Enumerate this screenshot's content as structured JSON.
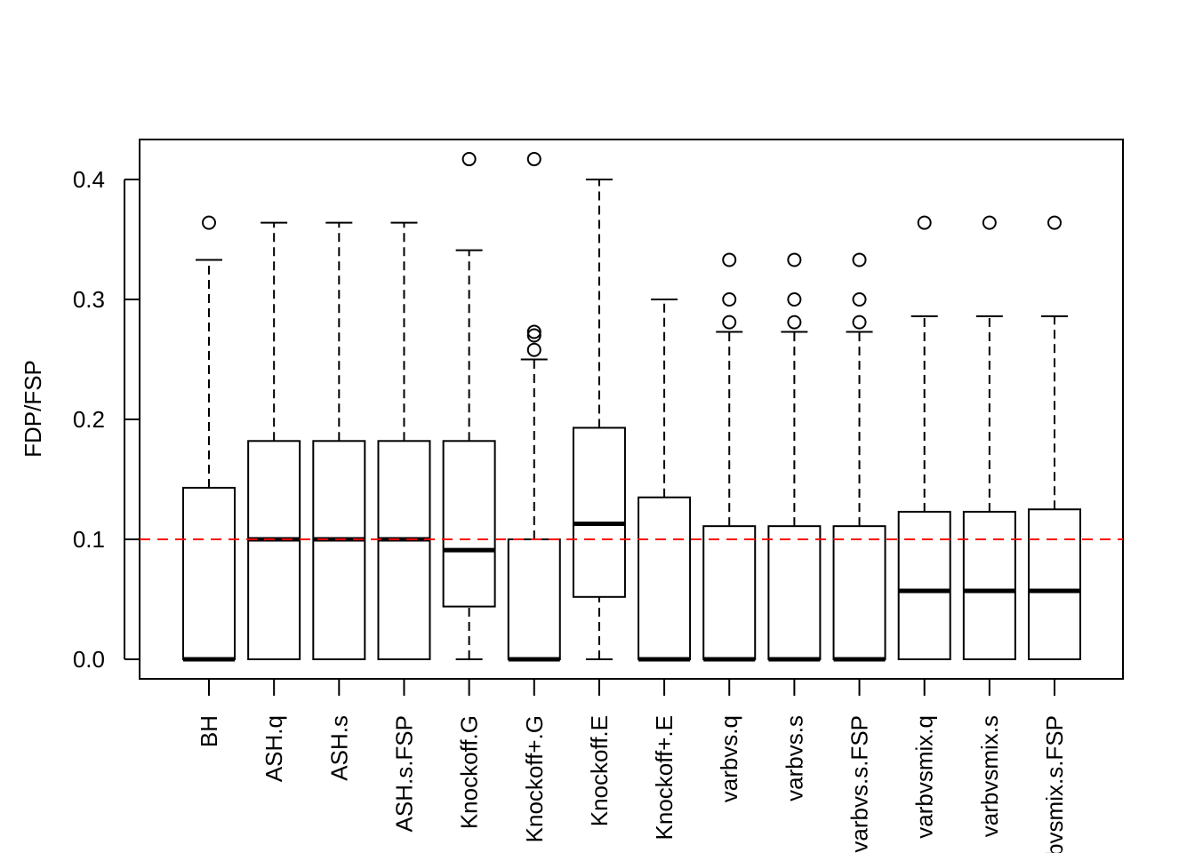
{
  "chart_data": {
    "type": "boxplot",
    "title": "",
    "xlabel": "",
    "ylabel": "FDP/FSP",
    "ylim": [
      -0.017,
      0.433
    ],
    "yticks": [
      0.0,
      0.1,
      0.2,
      0.3,
      0.4
    ],
    "ytick_labels": [
      "0.0",
      "0.1",
      "0.2",
      "0.3",
      "0.4"
    ],
    "grid": false,
    "reference_line": {
      "y": 0.1,
      "color": "#ff0000",
      "style": "dashed"
    },
    "categories": [
      "BH",
      "ASH.q",
      "ASH.s",
      "ASH.s.FSP",
      "Knockoff.G",
      "Knockoff+.G",
      "Knockoff.E",
      "Knockoff+.E",
      "varbvs.q",
      "varbvs.s",
      "varbvs.s.FSP",
      "varbvsmix.q",
      "varbvsmix.s",
      "varbvsmix.s.FSP"
    ],
    "boxes": [
      {
        "name": "BH",
        "whisker_low": 0.0,
        "q1": 0.0,
        "median": 0.0,
        "q3": 0.143,
        "whisker_high": 0.333,
        "outliers": [
          0.364
        ]
      },
      {
        "name": "ASH.q",
        "whisker_low": 0.0,
        "q1": 0.0,
        "median": 0.1,
        "q3": 0.182,
        "whisker_high": 0.364,
        "outliers": []
      },
      {
        "name": "ASH.s",
        "whisker_low": 0.0,
        "q1": 0.0,
        "median": 0.1,
        "q3": 0.182,
        "whisker_high": 0.364,
        "outliers": []
      },
      {
        "name": "ASH.s.FSP",
        "whisker_low": 0.0,
        "q1": 0.0,
        "median": 0.1,
        "q3": 0.182,
        "whisker_high": 0.364,
        "outliers": []
      },
      {
        "name": "Knockoff.G",
        "whisker_low": 0.0,
        "q1": 0.044,
        "median": 0.091,
        "q3": 0.182,
        "whisker_high": 0.341,
        "outliers": [
          0.417
        ]
      },
      {
        "name": "Knockoff+.G",
        "whisker_low": 0.0,
        "q1": 0.0,
        "median": 0.0,
        "q3": 0.1,
        "whisker_high": 0.25,
        "outliers": [
          0.258,
          0.27,
          0.273,
          0.417
        ]
      },
      {
        "name": "Knockoff.E",
        "whisker_low": 0.0,
        "q1": 0.052,
        "median": 0.113,
        "q3": 0.193,
        "whisker_high": 0.4,
        "outliers": []
      },
      {
        "name": "Knockoff+.E",
        "whisker_low": 0.0,
        "q1": 0.0,
        "median": 0.0,
        "q3": 0.135,
        "whisker_high": 0.3,
        "outliers": []
      },
      {
        "name": "varbvs.q",
        "whisker_low": 0.0,
        "q1": 0.0,
        "median": 0.0,
        "q3": 0.111,
        "whisker_high": 0.273,
        "outliers": [
          0.281,
          0.3,
          0.333
        ]
      },
      {
        "name": "varbvs.s",
        "whisker_low": 0.0,
        "q1": 0.0,
        "median": 0.0,
        "q3": 0.111,
        "whisker_high": 0.273,
        "outliers": [
          0.281,
          0.3,
          0.333
        ]
      },
      {
        "name": "varbvs.s.FSP",
        "whisker_low": 0.0,
        "q1": 0.0,
        "median": 0.0,
        "q3": 0.111,
        "whisker_high": 0.273,
        "outliers": [
          0.281,
          0.3,
          0.333
        ]
      },
      {
        "name": "varbvsmix.q",
        "whisker_low": 0.0,
        "q1": 0.0,
        "median": 0.057,
        "q3": 0.123,
        "whisker_high": 0.286,
        "outliers": [
          0.364
        ]
      },
      {
        "name": "varbvsmix.s",
        "whisker_low": 0.0,
        "q1": 0.0,
        "median": 0.057,
        "q3": 0.123,
        "whisker_high": 0.286,
        "outliers": [
          0.364
        ]
      },
      {
        "name": "varbvsmix.s.FSP",
        "whisker_low": 0.0,
        "q1": 0.0,
        "median": 0.057,
        "q3": 0.125,
        "whisker_high": 0.286,
        "outliers": [
          0.364
        ]
      }
    ]
  }
}
